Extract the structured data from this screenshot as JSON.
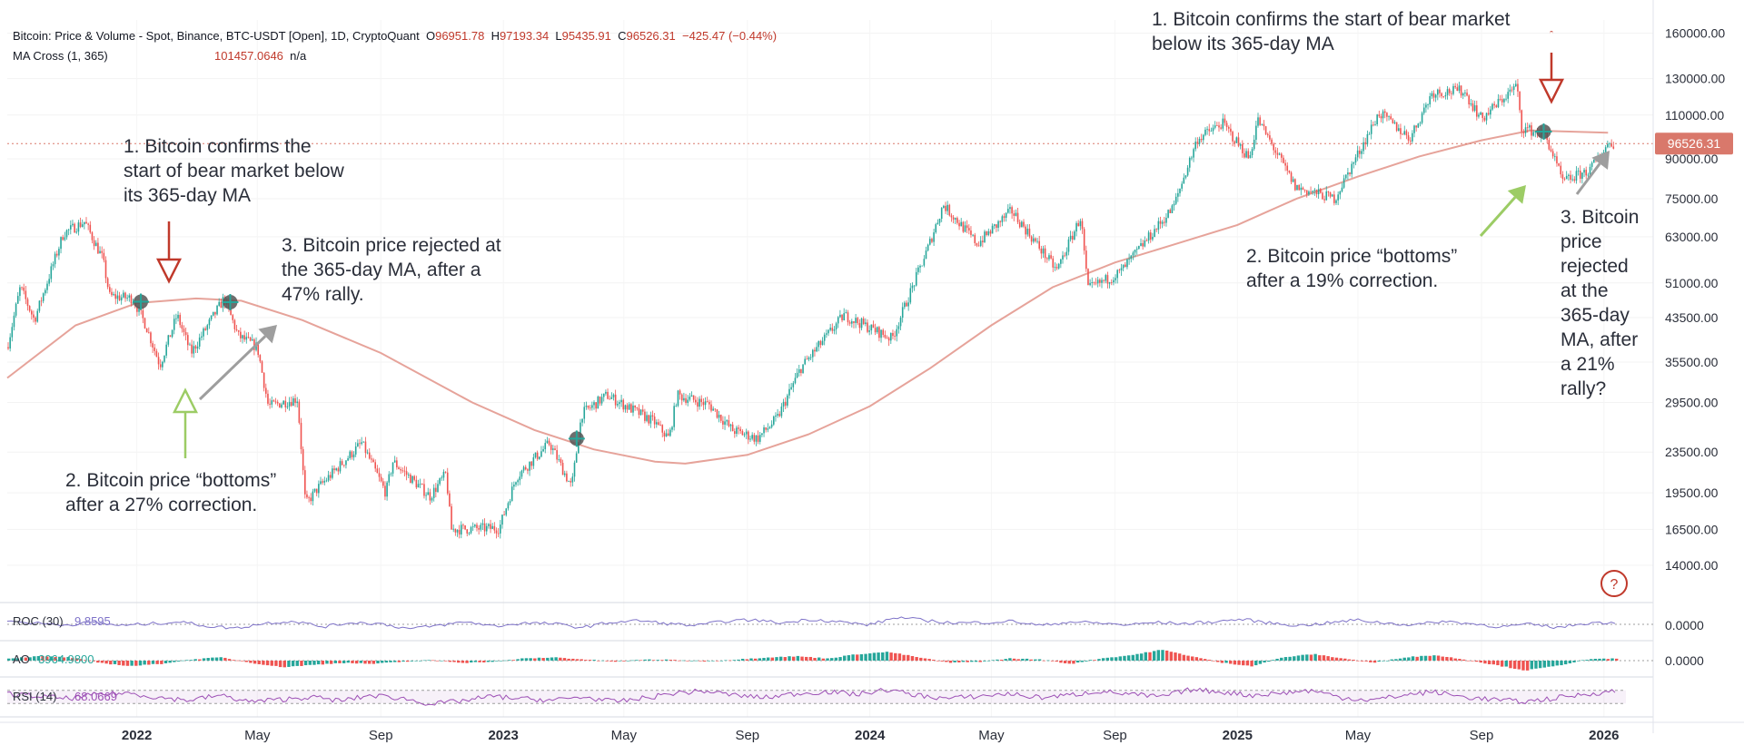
{
  "header": {
    "title": "Bitcoin: Price & Volume - Spot, Binance, BTC-USDT [Open], 1D, CryptoQuant",
    "ohlc": {
      "o_label": "O",
      "o": "96951.78",
      "h_label": "H",
      "h": "97193.34",
      "l_label": "L",
      "l": "95435.91",
      "c_label": "C",
      "c": "96526.31",
      "change": "−425.47 (−0.44%)"
    },
    "ma_label": "MA Cross (1, 365)",
    "ma_value": "101457.0646",
    "ma_extra": "n/a"
  },
  "annotations": {
    "a1_left": "1. Bitcoin confirms the\nstart of bear market below\nits 365-day MA",
    "a2_left": "2. Bitcoin price “bottoms”\nafter a 27% correction.",
    "a3_left": "3. Bitcoin price rejected at\nthe 365-day MA, after a\n47% rally.",
    "a1_right": "1. Bitcoin confirms the start of bear market\nbelow its 365-day MA",
    "a2_right": "2. Bitcoin price “bottoms”\nafter a 19% correction.",
    "a3_right": "3. Bitcoin\nprice\nrejected\nat the\n365-day\nMA, after\na 21%\nrally?"
  },
  "help_icon": "?",
  "colors": {
    "up": "#26a69a",
    "down": "#ef5350",
    "ma": "#e6a39a",
    "osc": "#7e72c8",
    "rsi": "#9c4fb5",
    "price_tag": "#d9786b",
    "arrow_red": "#c0392b",
    "arrow_green": "#9ccc65",
    "arrow_gray": "#9e9e9e"
  },
  "chart_data": [
    {
      "type": "line",
      "title": "Bitcoin: Price & Volume - Spot, Binance, BTC-USDT [Open], 1D, CryptoQuant",
      "scale": "log",
      "ylim": [
        12000,
        170000
      ],
      "y_ticks": [
        "160000.00",
        "130000.00",
        "110000.00",
        "90000.00",
        "75000.00",
        "63000.00",
        "51000.00",
        "43500.00",
        "35500.00",
        "29500.00",
        "23500.00",
        "19500.00",
        "16500.00",
        "14000.00"
      ],
      "x_ticks": [
        "2022",
        "May",
        "Sep",
        "2023",
        "May",
        "Sep",
        "2024",
        "May",
        "Sep",
        "2025",
        "May",
        "Sep",
        "2026"
      ],
      "last_price": "96526.31",
      "last_price_value": 96526.31,
      "series": [
        {
          "name": "BTC-USDT Price",
          "points": [
            [
              "2021-08-25",
              38000
            ],
            [
              "2021-09-07",
              50000
            ],
            [
              "2021-09-21",
              43000
            ],
            [
              "2021-10-20",
              64000
            ],
            [
              "2021-11-10",
              67500
            ],
            [
              "2021-11-28",
              57000
            ],
            [
              "2021-12-05",
              48000
            ],
            [
              "2021-12-28",
              47500
            ],
            [
              "2022-01-10",
              42000
            ],
            [
              "2022-01-24",
              35000
            ],
            [
              "2022-02-10",
              44000
            ],
            [
              "2022-02-24",
              37000
            ],
            [
              "2022-03-29",
              47500
            ],
            [
              "2022-04-12",
              40000
            ],
            [
              "2022-05-01",
              38000
            ],
            [
              "2022-05-12",
              29000
            ],
            [
              "2022-06-10",
              30000
            ],
            [
              "2022-06-18",
              18500
            ],
            [
              "2022-07-01",
              20000
            ],
            [
              "2022-08-13",
              24500
            ],
            [
              "2022-09-06",
              19500
            ],
            [
              "2022-09-13",
              22500
            ],
            [
              "2022-10-20",
              19200
            ],
            [
              "2022-11-05",
              21300
            ],
            [
              "2022-11-10",
              16500
            ],
            [
              "2022-12-28",
              16600
            ],
            [
              "2023-01-14",
              21000
            ],
            [
              "2023-02-16",
              24500
            ],
            [
              "2023-03-10",
              20000
            ],
            [
              "2023-03-20",
              28000
            ],
            [
              "2023-04-14",
              30500
            ],
            [
              "2023-05-31",
              27000
            ],
            [
              "2023-06-15",
              25000
            ],
            [
              "2023-06-23",
              30500
            ],
            [
              "2023-07-25",
              29200
            ],
            [
              "2023-08-17",
              26000
            ],
            [
              "2023-09-11",
              25000
            ],
            [
              "2023-10-01",
              27500
            ],
            [
              "2023-10-24",
              34500
            ],
            [
              "2023-12-06",
              44000
            ],
            [
              "2024-01-23",
              39500
            ],
            [
              "2024-02-28",
              60000
            ],
            [
              "2024-03-14",
              73000
            ],
            [
              "2024-04-17",
              61000
            ],
            [
              "2024-05-21",
              71000
            ],
            [
              "2024-07-05",
              54000
            ],
            [
              "2024-07-29",
              69000
            ],
            [
              "2024-08-05",
              49500
            ],
            [
              "2024-09-06",
              53500
            ],
            [
              "2024-10-29",
              72000
            ],
            [
              "2024-11-22",
              98500
            ],
            [
              "2024-12-17",
              106000
            ],
            [
              "2025-01-13",
              90000
            ],
            [
              "2025-01-21",
              108000
            ],
            [
              "2025-02-28",
              79000
            ],
            [
              "2025-04-08",
              75000
            ],
            [
              "2025-05-22",
              111000
            ],
            [
              "2025-06-22",
              99000
            ],
            [
              "2025-07-14",
              122000
            ],
            [
              "2025-08-14",
              123000
            ],
            [
              "2025-09-01",
              108000
            ],
            [
              "2025-10-06",
              126000
            ],
            [
              "2025-10-11",
              104000
            ],
            [
              "2025-11-04",
              100000
            ],
            [
              "2025-11-21",
              81000
            ],
            [
              "2025-12-18",
              85500
            ],
            [
              "2026-01-05",
              96526
            ]
          ]
        },
        {
          "name": "MA 365",
          "points": [
            [
              "2021-08-25",
              33000
            ],
            [
              "2021-11-01",
              42000
            ],
            [
              "2022-01-01",
              46500
            ],
            [
              "2022-03-01",
              47500
            ],
            [
              "2022-04-15",
              47000
            ],
            [
              "2022-06-15",
              43000
            ],
            [
              "2022-09-01",
              37000
            ],
            [
              "2022-12-01",
              29500
            ],
            [
              "2023-02-01",
              26000
            ],
            [
              "2023-04-01",
              23800
            ],
            [
              "2023-06-01",
              22500
            ],
            [
              "2023-07-01",
              22300
            ],
            [
              "2023-09-01",
              23200
            ],
            [
              "2023-11-01",
              25500
            ],
            [
              "2024-01-01",
              29000
            ],
            [
              "2024-03-01",
              34500
            ],
            [
              "2024-05-01",
              42000
            ],
            [
              "2024-07-01",
              50000
            ],
            [
              "2024-09-01",
              56000
            ],
            [
              "2024-11-01",
              61000
            ],
            [
              "2025-01-01",
              66500
            ],
            [
              "2025-03-01",
              75000
            ],
            [
              "2025-05-01",
              83000
            ],
            [
              "2025-07-01",
              91000
            ],
            [
              "2025-09-01",
              98000
            ],
            [
              "2025-10-20",
              102500
            ],
            [
              "2026-01-05",
              101457
            ]
          ]
        }
      ],
      "cross_markers": [
        [
          "2022-01-05",
          46800
        ],
        [
          "2022-04-04",
          46700
        ],
        [
          "2023-03-15",
          25000
        ],
        [
          "2025-11-02",
          102000
        ]
      ]
    },
    {
      "type": "line",
      "title": "ROC (30)",
      "legend": "ROC (30)",
      "value_label": "9.8595",
      "axis_label": "0.0000",
      "series": [
        {
          "name": "ROC",
          "values": [
            0.25,
            0.1,
            -0.05,
            0.15,
            -0.1,
            0.05,
            0.2,
            -0.15,
            -0.3,
            0.1,
            0.25,
            -0.2,
            0.15,
            0.05,
            -0.35,
            -0.1,
            0.2,
            -0.15,
            0.1,
            0.05,
            -0.25,
            0.15,
            0.3,
            0.05,
            -0.1,
            0.25,
            0.35,
            0.1,
            0.4,
            0.2,
            -0.05,
            0.55,
            0.3,
            0.1,
            0.15,
            0.25,
            -0.1,
            0.2,
            0.1,
            -0.05,
            0.15,
            0.05,
            0.2,
            0.4,
            0.1,
            -0.1,
            0.1,
            0.35,
            0.1,
            -0.05,
            0.25,
            0.05,
            -0.2,
            0.0,
            -0.25,
            0.1,
            0.15
          ]
        }
      ]
    },
    {
      "type": "bar",
      "title": "AO",
      "legend": "AO",
      "value_label": "3964.9800",
      "axis_label": "0.0000",
      "series": [
        {
          "name": "AO",
          "values": [
            0.2,
            0.4,
            0.3,
            -0.2,
            -0.5,
            -0.3,
            0.1,
            0.3,
            -0.2,
            -0.6,
            -0.4,
            -0.2,
            -0.3,
            -0.1,
            0.05,
            -0.2,
            -0.1,
            0.2,
            0.3,
            0.1,
            -0.1,
            0.1,
            0.05,
            -0.05,
            0.1,
            0.3,
            0.4,
            0.2,
            0.6,
            0.8,
            0.3,
            -0.2,
            -0.1,
            0.2,
            0.1,
            -0.3,
            0.2,
            0.5,
            1.0,
            0.4,
            -0.2,
            -0.5,
            0.3,
            0.6,
            0.2,
            -0.2,
            0.3,
            0.5,
            0.1,
            -0.4,
            -0.9,
            -0.5,
            0.1,
            0.2
          ]
        }
      ]
    },
    {
      "type": "line",
      "title": "RSI (14)",
      "legend": "RSI (14)",
      "value_label": "68.0669",
      "ylim": [
        0,
        100
      ],
      "bands": [
        30,
        70
      ],
      "series": [
        {
          "name": "RSI",
          "values": [
            60,
            52,
            45,
            58,
            62,
            48,
            40,
            55,
            35,
            42,
            50,
            38,
            55,
            46,
            28,
            38,
            52,
            44,
            40,
            50,
            35,
            46,
            62,
            68,
            55,
            48,
            60,
            66,
            58,
            72,
            55,
            45,
            52,
            60,
            48,
            55,
            68,
            58,
            50,
            72,
            66,
            55,
            62,
            70,
            48,
            40,
            55,
            66,
            50,
            42,
            35,
            46,
            58,
            68
          ]
        }
      ]
    }
  ]
}
